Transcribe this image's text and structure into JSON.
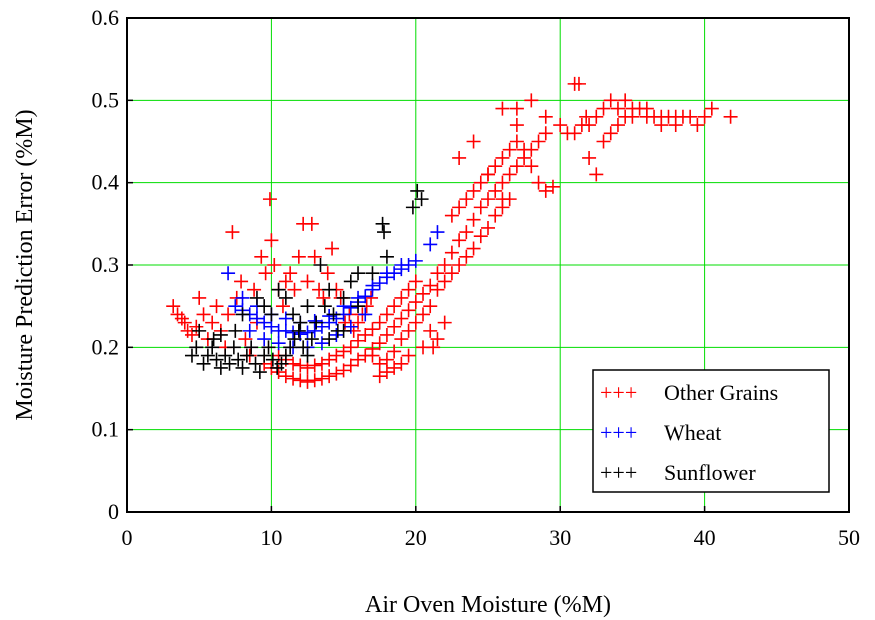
{
  "chart_data": {
    "type": "scatter",
    "title": "",
    "xlabel": "Air Oven Moisture (%M)",
    "ylabel": "Moisture Prediction Error (%M)",
    "xlim": [
      0,
      50
    ],
    "ylim": [
      0,
      0.6
    ],
    "x_ticks": [
      "0",
      "10",
      "20",
      "30",
      "40",
      "50"
    ],
    "y_ticks": [
      "0",
      "0.1",
      "0.2",
      "0.3",
      "0.4",
      "0.5",
      "0.6"
    ],
    "grid": true,
    "grid_color": "#00dd00",
    "marker": "+",
    "legend_position": "bottom-right",
    "legend_marker": "+++",
    "series": [
      {
        "name": "Other Grains",
        "color": "#ff0000",
        "points": [
          [
            3.2,
            0.25
          ],
          [
            3.5,
            0.24
          ],
          [
            3.8,
            0.235
          ],
          [
            4.0,
            0.23
          ],
          [
            4.2,
            0.22
          ],
          [
            4.5,
            0.215
          ],
          [
            4.8,
            0.225
          ],
          [
            5.0,
            0.26
          ],
          [
            5.3,
            0.24
          ],
          [
            5.6,
            0.21
          ],
          [
            5.9,
            0.23
          ],
          [
            6.2,
            0.25
          ],
          [
            6.5,
            0.22
          ],
          [
            6.8,
            0.2
          ],
          [
            7.0,
            0.24
          ],
          [
            7.3,
            0.34
          ],
          [
            7.6,
            0.26
          ],
          [
            7.9,
            0.28
          ],
          [
            8.2,
            0.21
          ],
          [
            8.5,
            0.19
          ],
          [
            8.8,
            0.27
          ],
          [
            9.0,
            0.23
          ],
          [
            9.3,
            0.31
          ],
          [
            9.6,
            0.29
          ],
          [
            9.9,
            0.38
          ],
          [
            10.0,
            0.33
          ],
          [
            10.2,
            0.3
          ],
          [
            10.5,
            0.27
          ],
          [
            10.8,
            0.25
          ],
          [
            11.0,
            0.28
          ],
          [
            11.3,
            0.29
          ],
          [
            11.6,
            0.27
          ],
          [
            11.9,
            0.31
          ],
          [
            12.2,
            0.35
          ],
          [
            12.5,
            0.28
          ],
          [
            12.8,
            0.35
          ],
          [
            13.0,
            0.31
          ],
          [
            13.3,
            0.27
          ],
          [
            13.6,
            0.26
          ],
          [
            13.9,
            0.29
          ],
          [
            14.2,
            0.32
          ],
          [
            14.5,
            0.27
          ],
          [
            14.8,
            0.26
          ],
          [
            15.1,
            0.23
          ],
          [
            15.4,
            0.24
          ],
          [
            15.7,
            0.22
          ],
          [
            16.0,
            0.23
          ],
          [
            16.3,
            0.24
          ],
          [
            16.6,
            0.25
          ],
          [
            16.9,
            0.26
          ],
          [
            9.5,
            0.18
          ],
          [
            10.0,
            0.175
          ],
          [
            10.5,
            0.17
          ],
          [
            11.0,
            0.165
          ],
          [
            11.5,
            0.162
          ],
          [
            12.0,
            0.16
          ],
          [
            12.5,
            0.158
          ],
          [
            13.0,
            0.16
          ],
          [
            13.5,
            0.162
          ],
          [
            14.0,
            0.165
          ],
          [
            14.5,
            0.168
          ],
          [
            15.0,
            0.172
          ],
          [
            15.5,
            0.178
          ],
          [
            16.0,
            0.185
          ],
          [
            16.5,
            0.19
          ],
          [
            17.0,
            0.198
          ],
          [
            17.5,
            0.205
          ],
          [
            18.0,
            0.215
          ],
          [
            18.5,
            0.225
          ],
          [
            19.0,
            0.235
          ],
          [
            19.5,
            0.245
          ],
          [
            20.0,
            0.255
          ],
          [
            20.5,
            0.265
          ],
          [
            21.0,
            0.275
          ],
          [
            21.5,
            0.29
          ],
          [
            22.0,
            0.3
          ],
          [
            22.5,
            0.315
          ],
          [
            23.0,
            0.33
          ],
          [
            23.5,
            0.34
          ],
          [
            24.0,
            0.355
          ],
          [
            10.5,
            0.19
          ],
          [
            11.0,
            0.185
          ],
          [
            11.5,
            0.18
          ],
          [
            12.0,
            0.178
          ],
          [
            12.5,
            0.175
          ],
          [
            13.0,
            0.178
          ],
          [
            13.5,
            0.18
          ],
          [
            14.0,
            0.185
          ],
          [
            14.5,
            0.19
          ],
          [
            15.0,
            0.195
          ],
          [
            15.5,
            0.2
          ],
          [
            16.0,
            0.208
          ],
          [
            16.5,
            0.215
          ],
          [
            17.0,
            0.222
          ],
          [
            17.5,
            0.23
          ],
          [
            18.0,
            0.24
          ],
          [
            18.5,
            0.25
          ],
          [
            19.0,
            0.26
          ],
          [
            19.5,
            0.27
          ],
          [
            20.0,
            0.28
          ],
          [
            17.0,
            0.19
          ],
          [
            17.5,
            0.18
          ],
          [
            18.0,
            0.185
          ],
          [
            18.5,
            0.195
          ],
          [
            19.0,
            0.21
          ],
          [
            19.5,
            0.22
          ],
          [
            20.0,
            0.23
          ],
          [
            20.5,
            0.24
          ],
          [
            21.0,
            0.25
          ],
          [
            21.5,
            0.27
          ],
          [
            22.0,
            0.28
          ],
          [
            22.5,
            0.29
          ],
          [
            23.0,
            0.3
          ],
          [
            23.5,
            0.31
          ],
          [
            24.0,
            0.32
          ],
          [
            24.5,
            0.335
          ],
          [
            25.0,
            0.345
          ],
          [
            25.5,
            0.36
          ],
          [
            26.0,
            0.37
          ],
          [
            26.5,
            0.38
          ],
          [
            24.5,
            0.37
          ],
          [
            25.0,
            0.38
          ],
          [
            25.5,
            0.39
          ],
          [
            26.0,
            0.4
          ],
          [
            26.5,
            0.41
          ],
          [
            27.0,
            0.42
          ],
          [
            27.5,
            0.43
          ],
          [
            28.0,
            0.44
          ],
          [
            28.5,
            0.45
          ],
          [
            29.0,
            0.46
          ],
          [
            22.5,
            0.36
          ],
          [
            23.0,
            0.37
          ],
          [
            23.5,
            0.38
          ],
          [
            24.0,
            0.39
          ],
          [
            24.5,
            0.4
          ],
          [
            25.0,
            0.41
          ],
          [
            25.5,
            0.42
          ],
          [
            26.0,
            0.43
          ],
          [
            26.5,
            0.44
          ],
          [
            27.0,
            0.45
          ],
          [
            23.0,
            0.43
          ],
          [
            24.0,
            0.45
          ],
          [
            25.0,
            0.41
          ],
          [
            26.0,
            0.38
          ],
          [
            27.0,
            0.47
          ],
          [
            27.5,
            0.44
          ],
          [
            28.0,
            0.42
          ],
          [
            28.5,
            0.4
          ],
          [
            29.0,
            0.39
          ],
          [
            29.5,
            0.395
          ],
          [
            26.0,
            0.49
          ],
          [
            27.0,
            0.49
          ],
          [
            28.0,
            0.5
          ],
          [
            29.0,
            0.48
          ],
          [
            30.0,
            0.47
          ],
          [
            31.0,
            0.52
          ],
          [
            31.3,
            0.52
          ],
          [
            31.8,
            0.48
          ],
          [
            32.0,
            0.43
          ],
          [
            32.5,
            0.41
          ],
          [
            30.5,
            0.46
          ],
          [
            31.0,
            0.46
          ],
          [
            31.5,
            0.47
          ],
          [
            32.0,
            0.47
          ],
          [
            32.5,
            0.48
          ],
          [
            33.0,
            0.49
          ],
          [
            33.5,
            0.5
          ],
          [
            34.0,
            0.49
          ],
          [
            34.5,
            0.5
          ],
          [
            35.0,
            0.49
          ],
          [
            35.5,
            0.49
          ],
          [
            36.0,
            0.48
          ],
          [
            36.5,
            0.48
          ],
          [
            37.0,
            0.48
          ],
          [
            37.5,
            0.48
          ],
          [
            38.0,
            0.47
          ],
          [
            38.5,
            0.48
          ],
          [
            39.0,
            0.48
          ],
          [
            39.5,
            0.47
          ],
          [
            40.0,
            0.48
          ],
          [
            40.5,
            0.49
          ],
          [
            41.8,
            0.48
          ],
          [
            33.0,
            0.45
          ],
          [
            33.5,
            0.46
          ],
          [
            34.0,
            0.47
          ],
          [
            34.5,
            0.48
          ],
          [
            35.0,
            0.48
          ],
          [
            36.0,
            0.49
          ],
          [
            37.0,
            0.47
          ],
          [
            38.0,
            0.48
          ],
          [
            21.0,
            0.22
          ],
          [
            21.5,
            0.21
          ],
          [
            20.5,
            0.2
          ],
          [
            19.5,
            0.19
          ],
          [
            19.0,
            0.18
          ],
          [
            18.5,
            0.175
          ],
          [
            18.0,
            0.17
          ],
          [
            17.5,
            0.165
          ],
          [
            21.2,
            0.2
          ],
          [
            22.0,
            0.23
          ]
        ]
      },
      {
        "name": "Wheat",
        "color": "#0000ff",
        "points": [
          [
            7.0,
            0.29
          ],
          [
            7.5,
            0.25
          ],
          [
            8.0,
            0.245
          ],
          [
            8.5,
            0.24
          ],
          [
            9.0,
            0.235
          ],
          [
            9.5,
            0.23
          ],
          [
            10.0,
            0.225
          ],
          [
            10.5,
            0.22
          ],
          [
            11.0,
            0.22
          ],
          [
            11.5,
            0.218
          ],
          [
            12.0,
            0.216
          ],
          [
            12.5,
            0.218
          ],
          [
            13.0,
            0.22
          ],
          [
            13.5,
            0.225
          ],
          [
            14.0,
            0.23
          ],
          [
            14.5,
            0.235
          ],
          [
            15.0,
            0.24
          ],
          [
            15.5,
            0.248
          ],
          [
            16.0,
            0.255
          ],
          [
            16.5,
            0.262
          ],
          [
            17.0,
            0.27
          ],
          [
            17.5,
            0.278
          ],
          [
            18.0,
            0.285
          ],
          [
            18.5,
            0.29
          ],
          [
            19.0,
            0.295
          ],
          [
            19.5,
            0.3
          ],
          [
            20.0,
            0.305
          ],
          [
            21.0,
            0.325
          ],
          [
            21.5,
            0.34
          ],
          [
            8.0,
            0.26
          ],
          [
            9.0,
            0.25
          ],
          [
            10.0,
            0.24
          ],
          [
            11.0,
            0.235
          ],
          [
            12.0,
            0.23
          ],
          [
            13.0,
            0.232
          ],
          [
            14.0,
            0.238
          ],
          [
            15.0,
            0.25
          ],
          [
            16.0,
            0.26
          ],
          [
            17.0,
            0.275
          ],
          [
            18.0,
            0.29
          ],
          [
            19.0,
            0.3
          ],
          [
            8.5,
            0.22
          ],
          [
            9.5,
            0.21
          ],
          [
            10.5,
            0.205
          ],
          [
            11.5,
            0.2
          ],
          [
            12.5,
            0.2
          ],
          [
            13.5,
            0.205
          ],
          [
            14.5,
            0.215
          ],
          [
            15.5,
            0.225
          ],
          [
            16.5,
            0.24
          ]
        ]
      },
      {
        "name": "Sunflower",
        "color": "#000000",
        "points": [
          [
            4.5,
            0.19
          ],
          [
            4.8,
            0.2
          ],
          [
            5.0,
            0.22
          ],
          [
            5.3,
            0.18
          ],
          [
            5.6,
            0.19
          ],
          [
            5.9,
            0.2
          ],
          [
            6.2,
            0.185
          ],
          [
            6.5,
            0.175
          ],
          [
            6.8,
            0.19
          ],
          [
            7.1,
            0.18
          ],
          [
            7.4,
            0.2
          ],
          [
            7.7,
            0.185
          ],
          [
            8.0,
            0.175
          ],
          [
            8.3,
            0.19
          ],
          [
            8.6,
            0.2
          ],
          [
            8.9,
            0.18
          ],
          [
            9.2,
            0.17
          ],
          [
            9.5,
            0.19
          ],
          [
            9.8,
            0.2
          ],
          [
            10.1,
            0.185
          ],
          [
            10.4,
            0.175
          ],
          [
            10.7,
            0.18
          ],
          [
            11.0,
            0.19
          ],
          [
            11.3,
            0.2
          ],
          [
            11.6,
            0.21
          ],
          [
            11.9,
            0.22
          ],
          [
            12.2,
            0.2
          ],
          [
            12.5,
            0.19
          ],
          [
            12.8,
            0.21
          ],
          [
            13.1,
            0.23
          ],
          [
            13.4,
            0.3
          ],
          [
            13.7,
            0.25
          ],
          [
            14.0,
            0.27
          ],
          [
            14.3,
            0.24
          ],
          [
            14.6,
            0.22
          ],
          [
            15.0,
            0.26
          ],
          [
            15.5,
            0.28
          ],
          [
            16.0,
            0.29
          ],
          [
            17.0,
            0.29
          ],
          [
            17.7,
            0.35
          ],
          [
            17.8,
            0.34
          ],
          [
            18.0,
            0.31
          ],
          [
            19.8,
            0.37
          ],
          [
            20.1,
            0.39
          ],
          [
            20.4,
            0.38
          ],
          [
            9.0,
            0.26
          ],
          [
            9.5,
            0.25
          ],
          [
            10.0,
            0.24
          ],
          [
            10.5,
            0.27
          ],
          [
            11.0,
            0.26
          ],
          [
            11.5,
            0.24
          ],
          [
            12.0,
            0.23
          ],
          [
            12.5,
            0.25
          ],
          [
            8.0,
            0.24
          ],
          [
            7.5,
            0.22
          ],
          [
            6.0,
            0.21
          ],
          [
            6.5,
            0.215
          ],
          [
            14.0,
            0.21
          ],
          [
            15.0,
            0.22
          ],
          [
            16.0,
            0.25
          ]
        ]
      }
    ]
  }
}
